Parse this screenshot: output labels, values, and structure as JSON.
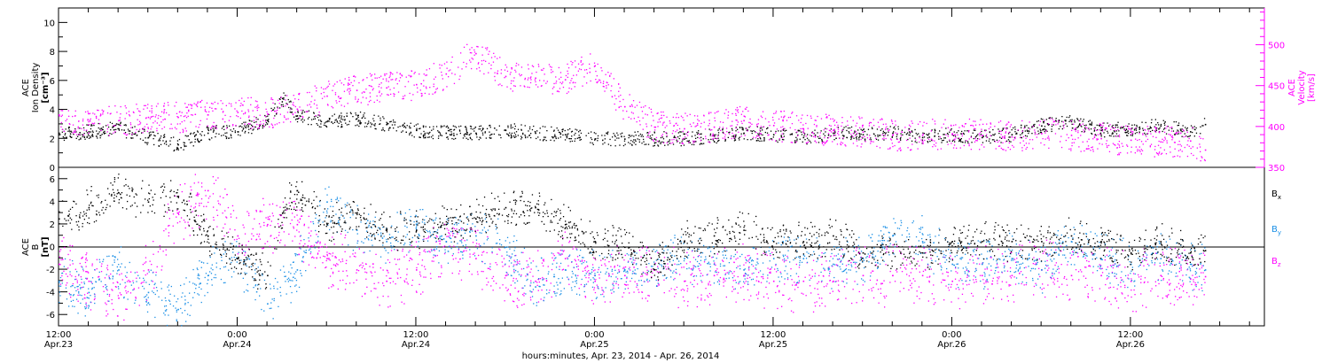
{
  "colors": {
    "black": "#000000",
    "magenta": "#ff00ff",
    "blue": "#1a8fe6",
    "axis": "#000000",
    "background": "#ffffff"
  },
  "xaxis": {
    "title": "hours:minutes, Apr. 23, 2014 - Apr. 26, 2014",
    "ticks": [
      {
        "time": "12:00",
        "date": "Apr.23"
      },
      {
        "time": "0:00",
        "date": "Apr.24"
      },
      {
        "time": "12:00",
        "date": "Apr.24"
      },
      {
        "time": "0:00",
        "date": "Apr.25"
      },
      {
        "time": "12:00",
        "date": "Apr.25"
      },
      {
        "time": "0:00",
        "date": "Apr.26"
      },
      {
        "time": "12:00",
        "date": "Apr.26"
      }
    ]
  },
  "chart_data": [
    {
      "type": "scatter",
      "panel": "top",
      "ylabel_left": [
        "ACE",
        "Ion Density",
        "[cm⁻³]"
      ],
      "ylabel_right": [
        "ACE",
        "Velocity",
        "[km/s]"
      ],
      "x_range_hours": [
        0,
        81
      ],
      "y_left_range": [
        0,
        11
      ],
      "y_left_ticks": [
        "0",
        "2",
        "4",
        "6",
        "8",
        "10"
      ],
      "y_right_range": [
        350,
        545
      ],
      "y_right_ticks": [
        "350",
        "400",
        "450",
        "500"
      ],
      "series": [
        {
          "axis": "left",
          "color": "#000000",
          "points_hours_value": [
            [
              0,
              2.3
            ],
            [
              2,
              2.5
            ],
            [
              4,
              2.7
            ],
            [
              6,
              2.1
            ],
            [
              8,
              1.6
            ],
            [
              10,
              2.4
            ],
            [
              12,
              2.5
            ],
            [
              14,
              3.3
            ],
            [
              15,
              4.8
            ],
            [
              16,
              3.6
            ],
            [
              18,
              3.2
            ],
            [
              20,
              3.4
            ],
            [
              22,
              3.0
            ],
            [
              24,
              2.6
            ],
            [
              26,
              2.4
            ],
            [
              28,
              2.4
            ],
            [
              30,
              2.6
            ],
            [
              32,
              2.4
            ],
            [
              34,
              2.3
            ],
            [
              36,
              2.0
            ],
            [
              38,
              2.0
            ],
            [
              40,
              2.0
            ],
            [
              42,
              2.0
            ],
            [
              44,
              2.2
            ],
            [
              46,
              2.4
            ],
            [
              48,
              2.3
            ],
            [
              50,
              2.1
            ],
            [
              52,
              2.4
            ],
            [
              54,
              2.3
            ],
            [
              56,
              2.4
            ],
            [
              58,
              2.1
            ],
            [
              60,
              2.3
            ],
            [
              62,
              2.1
            ],
            [
              64,
              2.3
            ],
            [
              66,
              2.9
            ],
            [
              68,
              3.2
            ],
            [
              70,
              2.6
            ],
            [
              72,
              2.7
            ],
            [
              74,
              2.9
            ],
            [
              76,
              2.5
            ],
            [
              77,
              3.0
            ]
          ]
        },
        {
          "axis": "right",
          "color": "#ff00ff",
          "points_hours_value": [
            [
              0,
              415
            ],
            [
              2,
              403
            ],
            [
              4,
              408
            ],
            [
              6,
              412
            ],
            [
              8,
              412
            ],
            [
              10,
              415
            ],
            [
              12,
              418
            ],
            [
              14,
              416
            ],
            [
              16,
              422
            ],
            [
              18,
              438
            ],
            [
              20,
              445
            ],
            [
              22,
              448
            ],
            [
              24,
              452
            ],
            [
              26,
              465
            ],
            [
              28,
              490
            ],
            [
              30,
              462
            ],
            [
              32,
              460
            ],
            [
              34,
              458
            ],
            [
              36,
              475
            ],
            [
              38,
              425
            ],
            [
              40,
              400
            ],
            [
              42,
              398
            ],
            [
              44,
              400
            ],
            [
              46,
              408
            ],
            [
              48,
              402
            ],
            [
              50,
              398
            ],
            [
              52,
              396
            ],
            [
              54,
              394
            ],
            [
              56,
              390
            ],
            [
              58,
              390
            ],
            [
              60,
              392
            ],
            [
              62,
              390
            ],
            [
              64,
              388
            ],
            [
              66,
              392
            ],
            [
              68,
              390
            ],
            [
              70,
              386
            ],
            [
              72,
              384
            ],
            [
              74,
              382
            ],
            [
              76,
              383
            ],
            [
              77,
              372
            ]
          ]
        }
      ]
    },
    {
      "type": "scatter",
      "panel": "bottom",
      "ylabel_left": [
        "ACE",
        "B",
        "[nT]"
      ],
      "x_range_hours": [
        0,
        81
      ],
      "y_range": [
        -7,
        7
      ],
      "y_ticks": [
        "-6",
        "-4",
        "-2",
        "0",
        "2",
        "4",
        "6"
      ],
      "legend_placement": "right",
      "series": [
        {
          "name_main": "B",
          "name_sub": "x",
          "color": "#000000",
          "points_hours_value": [
            [
              0,
              2.5
            ],
            [
              2,
              3.5
            ],
            [
              4,
              4.8
            ],
            [
              6,
              4.0
            ],
            [
              8,
              4.5
            ],
            [
              10,
              1.0
            ],
            [
              12,
              -1.0
            ],
            [
              14,
              -2.5
            ],
            [
              15,
              3.0
            ],
            [
              16,
              5.0
            ],
            [
              18,
              2.0
            ],
            [
              20,
              3.0
            ],
            [
              22,
              1.5
            ],
            [
              24,
              1.5
            ],
            [
              26,
              2.0
            ],
            [
              28,
              2.5
            ],
            [
              30,
              3.5
            ],
            [
              32,
              3.5
            ],
            [
              34,
              2.0
            ],
            [
              36,
              0.5
            ],
            [
              38,
              0.0
            ],
            [
              40,
              -1.5
            ],
            [
              42,
              0.5
            ],
            [
              44,
              1.0
            ],
            [
              46,
              1.5
            ],
            [
              48,
              0.5
            ],
            [
              50,
              0.5
            ],
            [
              52,
              1.0
            ],
            [
              54,
              -0.5
            ],
            [
              56,
              -0.5
            ],
            [
              58,
              -0.5
            ],
            [
              60,
              0.5
            ],
            [
              62,
              0.5
            ],
            [
              64,
              0.5
            ],
            [
              66,
              0.5
            ],
            [
              68,
              1.0
            ],
            [
              70,
              0.5
            ],
            [
              72,
              -0.5
            ],
            [
              74,
              0.5
            ],
            [
              76,
              -0.5
            ],
            [
              77,
              -0.3
            ]
          ]
        },
        {
          "name_main": "B",
          "name_sub": "y",
          "color": "#1a8fe6",
          "points_hours_value": [
            [
              0,
              -3.0
            ],
            [
              2,
              -4.0
            ],
            [
              4,
              -2.0
            ],
            [
              6,
              -4.0
            ],
            [
              8,
              -5.5
            ],
            [
              10,
              -2.5
            ],
            [
              12,
              -1.0
            ],
            [
              14,
              -5.0
            ],
            [
              16,
              -2.0
            ],
            [
              18,
              4.0
            ],
            [
              20,
              1.5
            ],
            [
              22,
              0.5
            ],
            [
              24,
              2.0
            ],
            [
              26,
              0.5
            ],
            [
              28,
              1.0
            ],
            [
              30,
              0.0
            ],
            [
              32,
              -3.5
            ],
            [
              34,
              -2.0
            ],
            [
              36,
              -2.5
            ],
            [
              38,
              -2.0
            ],
            [
              40,
              -1.5
            ],
            [
              42,
              -1.0
            ],
            [
              44,
              -1.5
            ],
            [
              46,
              -2.0
            ],
            [
              48,
              -1.0
            ],
            [
              50,
              -1.0
            ],
            [
              52,
              -1.5
            ],
            [
              54,
              -1.0
            ],
            [
              56,
              1.0
            ],
            [
              58,
              0.5
            ],
            [
              60,
              -1.5
            ],
            [
              62,
              -1.5
            ],
            [
              64,
              -1.0
            ],
            [
              66,
              -2.0
            ],
            [
              68,
              0.5
            ],
            [
              70,
              -1.0
            ],
            [
              72,
              -1.5
            ],
            [
              74,
              -1.0
            ],
            [
              76,
              -1.5
            ],
            [
              77,
              -2.0
            ]
          ]
        },
        {
          "name_main": "B",
          "name_sub": "z",
          "color": "#ff00ff",
          "points_hours_value": [
            [
              0,
              -1.5
            ],
            [
              2,
              -3.0
            ],
            [
              4,
              -4.5
            ],
            [
              6,
              -2.0
            ],
            [
              8,
              3.0
            ],
            [
              10,
              5.0
            ],
            [
              12,
              1.0
            ],
            [
              14,
              2.0
            ],
            [
              16,
              2.0
            ],
            [
              18,
              -1.0
            ],
            [
              20,
              -2.0
            ],
            [
              22,
              -3.0
            ],
            [
              24,
              -2.0
            ],
            [
              26,
              0.5
            ],
            [
              28,
              -1.0
            ],
            [
              30,
              -2.5
            ],
            [
              32,
              -3.0
            ],
            [
              34,
              -1.0
            ],
            [
              36,
              -3.0
            ],
            [
              38,
              -2.5
            ],
            [
              40,
              -2.0
            ],
            [
              42,
              -3.0
            ],
            [
              44,
              -2.5
            ],
            [
              46,
              -2.5
            ],
            [
              48,
              -3.0
            ],
            [
              50,
              -3.0
            ],
            [
              52,
              -3.0
            ],
            [
              54,
              -2.5
            ],
            [
              56,
              -2.5
            ],
            [
              58,
              -2.5
            ],
            [
              60,
              -3.0
            ],
            [
              62,
              -2.5
            ],
            [
              64,
              -2.5
            ],
            [
              66,
              -2.0
            ],
            [
              68,
              -2.5
            ],
            [
              70,
              -2.5
            ],
            [
              72,
              -3.0
            ],
            [
              74,
              -2.5
            ],
            [
              76,
              -2.8
            ],
            [
              77,
              -2.6
            ]
          ]
        }
      ]
    }
  ]
}
